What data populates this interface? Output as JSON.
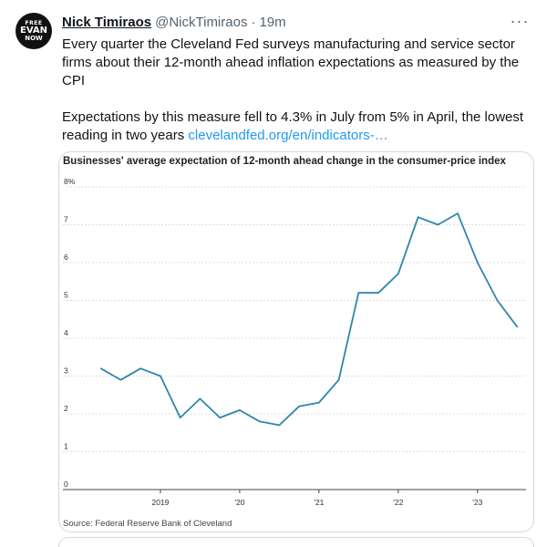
{
  "author": {
    "name": "Nick Timiraos",
    "handle": "@NickTimiraos",
    "separator": "·",
    "time": "19m",
    "avatar": {
      "line1": "FREE",
      "line2": "EVAN",
      "line3": "NOW"
    }
  },
  "more_label": "···",
  "tweet": {
    "paragraph1": "Every quarter the Cleveland Fed surveys manufacturing and service sector firms about their 12-month ahead inflation expectations as measured by the CPI",
    "paragraph2": "Expectations by this measure fell to 4.3% in July from 5% in April, the lowest reading in two years ",
    "link": "clevelandfed.org/en/indicators-…"
  },
  "chart_data": {
    "type": "line",
    "title": "Businesses' average expectation of 12-month ahead change in the consumer-price index",
    "source": "Source: Federal Reserve Bank of Cleveland",
    "ylim": [
      0,
      8
    ],
    "y_ticks": [
      "0",
      "1",
      "2",
      "3",
      "4",
      "5",
      "6",
      "7",
      "8%"
    ],
    "x_ticks": [
      "2019",
      "'20",
      "'21",
      "'22",
      "'23"
    ],
    "grid": true,
    "line_color": "#2e86ab",
    "series": [
      {
        "x": [
          "2018-04",
          "2018-07",
          "2018-10",
          "2019-01",
          "2019-04",
          "2019-07",
          "2019-10",
          "2020-01",
          "2020-04",
          "2020-07",
          "2020-10",
          "2021-01",
          "2021-04",
          "2021-07",
          "2021-10",
          "2022-01",
          "2022-04",
          "2022-07",
          "2022-10",
          "2023-01",
          "2023-04",
          "2023-07"
        ],
        "values": [
          3.2,
          2.9,
          3.2,
          3.0,
          1.9,
          2.4,
          1.9,
          2.1,
          1.8,
          1.7,
          2.2,
          2.3,
          2.9,
          5.2,
          5.2,
          5.7,
          7.2,
          7.0,
          7.3,
          6.0,
          5.0,
          4.3
        ]
      }
    ]
  }
}
